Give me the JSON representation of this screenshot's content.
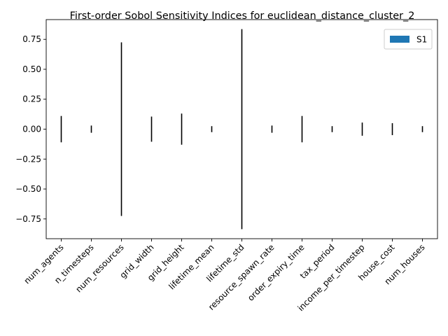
{
  "chart_data": {
    "type": "bar",
    "title": "First-order Sobol Sensitivity Indices for euclidean_distance_cluster_2",
    "xlabel": "",
    "ylabel": "",
    "categories": [
      "num_agents",
      "n_timesteps",
      "num_resources",
      "grid_width",
      "grid_height",
      "lifetime_mean",
      "lifetime_std",
      "resource_spawn_rate",
      "order_expiry_time",
      "tax_period",
      "income_per_timestep",
      "house_cost",
      "num_houses"
    ],
    "series": [
      {
        "name": "S1",
        "color": "#1f77b4",
        "values": [
          0.0,
          0.0,
          0.0,
          0.0,
          0.0,
          0.0,
          0.0,
          0.0,
          0.0,
          0.0,
          0.0,
          0.0,
          0.0
        ],
        "errors": [
          0.11,
          0.03,
          0.725,
          0.105,
          0.13,
          0.025,
          0.835,
          0.03,
          0.11,
          0.025,
          0.055,
          0.05,
          0.025
        ]
      }
    ],
    "ylim": [
      -0.915,
      0.915
    ],
    "yticks": [
      -0.75,
      -0.5,
      -0.25,
      0.0,
      0.25,
      0.5,
      0.75
    ],
    "ytick_labels": [
      "−0.75",
      "−0.50",
      "−0.25",
      "0.00",
      "0.25",
      "0.50",
      "0.75"
    ],
    "legend": {
      "position": "top-right",
      "entries": [
        "S1"
      ]
    },
    "grid": false
  }
}
